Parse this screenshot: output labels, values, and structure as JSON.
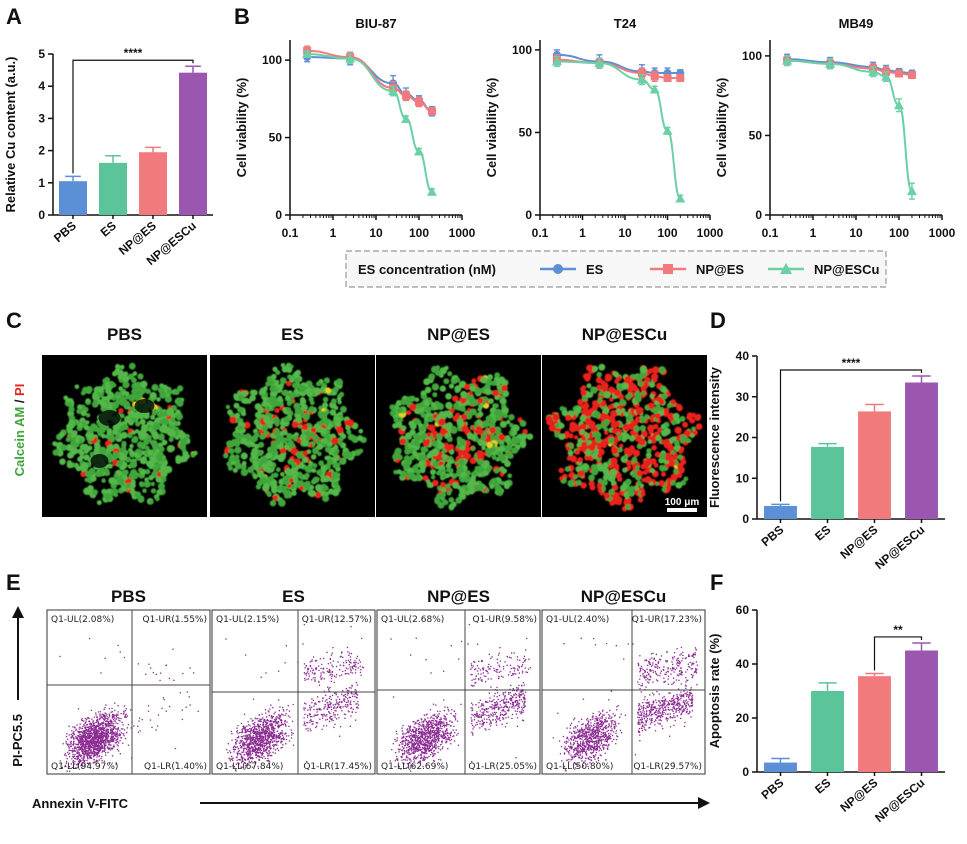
{
  "panel_labels": [
    "A",
    "B",
    "C",
    "D",
    "E",
    "F"
  ],
  "colors": {
    "PBS": "#5b8fd6",
    "ES": "#5cc49a",
    "NP@ES": "#f07a7c",
    "NP@ESCu": "#9b57b0",
    "ES_line": "#5b8fd6",
    "NP@ES_line": "#f07a7c",
    "NP@ESCu_line": "#6cd0a6",
    "cell_green": "#3fa53a",
    "cell_red": "#e8241c",
    "flow_dot": "#8a2a92"
  },
  "chart_data": [
    {
      "id": "A",
      "type": "bar",
      "categories": [
        "PBS",
        "ES",
        "NP@ES",
        "NP@ESCu"
      ],
      "values": [
        1.05,
        1.62,
        1.95,
        4.42
      ],
      "errors": [
        0.15,
        0.22,
        0.15,
        0.2
      ],
      "ylabel": "Relative Cu content (a.u.)",
      "ylim": [
        0,
        5
      ],
      "yticks": [
        "0",
        "1",
        "2",
        "3",
        "4",
        "5"
      ],
      "significance": {
        "from": "PBS",
        "to": "NP@ESCu",
        "label": "****"
      }
    },
    {
      "id": "B1",
      "type": "line",
      "title": "BIU-87",
      "ylabel": "Cell viability (%)",
      "xscale": "log",
      "xticks": [
        "0.1",
        "1",
        "10",
        "100",
        "1000"
      ],
      "yticks": [
        "0",
        "50",
        "100"
      ],
      "ylim": [
        0,
        110
      ],
      "x": [
        0.25,
        2.5,
        25,
        50,
        100,
        200
      ],
      "series": [
        {
          "name": "ES",
          "marker": "circle",
          "values": [
            102,
            101,
            85,
            78,
            74,
            67
          ],
          "errors": [
            3,
            4,
            5,
            4,
            3,
            3
          ]
        },
        {
          "name": "NP@ES",
          "marker": "square",
          "values": [
            106,
            102,
            82,
            77,
            73,
            67
          ],
          "errors": [
            3,
            3,
            4,
            3,
            3,
            2
          ]
        },
        {
          "name": "NP@ESCu",
          "marker": "triangle",
          "values": [
            104,
            101,
            80,
            62,
            41,
            15
          ],
          "errors": [
            2,
            3,
            3,
            2,
            2,
            2
          ]
        }
      ]
    },
    {
      "id": "B2",
      "type": "line",
      "title": "T24",
      "ylabel": "Cell viability (%)",
      "xscale": "log",
      "xticks": [
        "0.1",
        "1",
        "10",
        "100",
        "1000"
      ],
      "yticks": [
        "0",
        "50",
        "100"
      ],
      "ylim": [
        0,
        105
      ],
      "x": [
        0.25,
        2.5,
        25,
        50,
        100,
        200
      ],
      "series": [
        {
          "name": "ES",
          "marker": "circle",
          "values": [
            97,
            93,
            87,
            86,
            86,
            86
          ],
          "errors": [
            3,
            4,
            4,
            3,
            3,
            2
          ]
        },
        {
          "name": "NP@ES",
          "marker": "square",
          "values": [
            94,
            92,
            86,
            84,
            83,
            83
          ],
          "errors": [
            3,
            3,
            3,
            3,
            2,
            2
          ]
        },
        {
          "name": "NP@ESCu",
          "marker": "triangle",
          "values": [
            93,
            92,
            82,
            76,
            51,
            10
          ],
          "errors": [
            3,
            3,
            3,
            2,
            2,
            2
          ]
        }
      ]
    },
    {
      "id": "B3",
      "type": "line",
      "title": "MB49",
      "ylabel": "Cell viability (%)",
      "xscale": "log",
      "xticks": [
        "0.1",
        "1",
        "10",
        "100",
        "1000"
      ],
      "yticks": [
        "0",
        "50",
        "100"
      ],
      "ylim": [
        0,
        110
      ],
      "x": [
        0.25,
        2.5,
        25,
        50,
        100,
        200
      ],
      "series": [
        {
          "name": "ES",
          "marker": "circle",
          "values": [
            98,
            96,
            93,
            91,
            90,
            89
          ],
          "errors": [
            3,
            3,
            3,
            3,
            2,
            2
          ]
        },
        {
          "name": "NP@ES",
          "marker": "square",
          "values": [
            97,
            95,
            92,
            90,
            89,
            88
          ],
          "errors": [
            3,
            3,
            3,
            3,
            2,
            2
          ]
        },
        {
          "name": "NP@ESCu",
          "marker": "triangle",
          "values": [
            97,
            95,
            90,
            87,
            69,
            15
          ],
          "errors": [
            3,
            3,
            3,
            3,
            4,
            5
          ]
        }
      ]
    },
    {
      "id": "D",
      "type": "bar",
      "categories": [
        "PBS",
        "ES",
        "NP@ES",
        "NP@ESCu"
      ],
      "values": [
        3.2,
        17.7,
        26.4,
        33.5
      ],
      "errors": [
        0.4,
        0.8,
        1.7,
        1.6
      ],
      "ylabel": "Fluorescence intensity",
      "ylim": [
        0,
        40
      ],
      "yticks": [
        "0",
        "10",
        "20",
        "30",
        "40"
      ],
      "significance": {
        "from": "PBS",
        "to": "NP@ESCu",
        "label": "****"
      }
    },
    {
      "id": "F",
      "type": "bar",
      "categories": [
        "PBS",
        "ES",
        "NP@ES",
        "NP@ESCu"
      ],
      "values": [
        3.5,
        30,
        35.5,
        45
      ],
      "errors": [
        1.5,
        3,
        1,
        2.8
      ],
      "ylabel": "Apoptosis rate (%)",
      "ylim": [
        0,
        60
      ],
      "yticks": [
        "0",
        "20",
        "40",
        "60"
      ],
      "significance": {
        "from": "NP@ES",
        "to": "NP@ESCu",
        "label": "**"
      }
    },
    {
      "id": "E",
      "type": "scatter",
      "xlabel": "Annexin V-FITC",
      "ylabel": "PI-PC5.5",
      "panels": [
        {
          "title": "PBS",
          "ul": "Q1-UL(2.08%)",
          "ur": "Q1-UR(1.55%)",
          "ll": "Q1-LL(94.97%)",
          "lr": "Q1-LR(1.40%)"
        },
        {
          "title": "ES",
          "ul": "Q1-UL(2.15%)",
          "ur": "Q1-UR(12.57%)",
          "ll": "Q1-LL(67.84%)",
          "lr": "Q1-LR(17.45%)"
        },
        {
          "title": "NP@ES",
          "ul": "Q1-UL(2.68%)",
          "ur": "Q1-UR(9.58%)",
          "ll": "Q1-LL(62.69%)",
          "lr": "Q1-LR(25.05%)"
        },
        {
          "title": "NP@ESCu",
          "ul": "Q1-UL(2.40%)",
          "ur": "Q1-UR(17.23%)",
          "ll": "Q1-LL(50.80%)",
          "lr": "Q1-LR(29.57%)"
        }
      ]
    }
  ],
  "legend": {
    "title": "ES concentration (nM)",
    "items": [
      "ES",
      "NP@ES",
      "NP@ESCu"
    ]
  },
  "panel_c": {
    "titles": [
      "PBS",
      "ES",
      "NP@ES",
      "NP@ESCu"
    ],
    "ylabel_green": "Calcein AM",
    "ylabel_sep": " / ",
    "ylabel_red": "PI",
    "scalebar": "100 μm"
  }
}
